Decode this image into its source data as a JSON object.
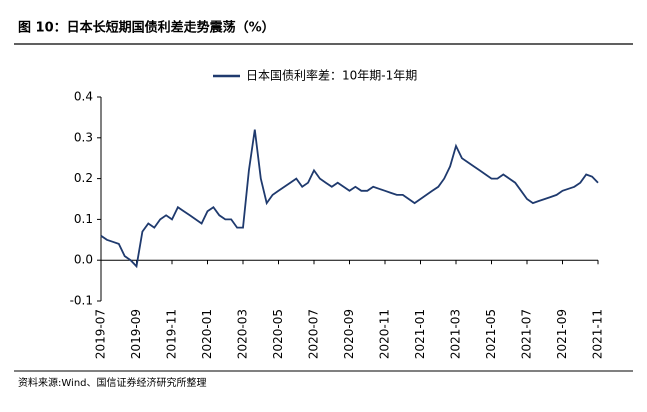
{
  "chart_data": {
    "type": "line",
    "title": "图 10：日本长短期国债利差走势震荡（%）",
    "source": "资料来源:Wind、国信证券经济研究所整理",
    "categories": [
      "2019-07",
      null,
      null,
      null,
      null,
      null,
      "2019-09",
      null,
      null,
      null,
      null,
      null,
      "2019-11",
      null,
      null,
      null,
      null,
      null,
      "2020-01",
      null,
      null,
      null,
      null,
      null,
      "2020-03",
      null,
      null,
      null,
      null,
      null,
      "2020-05",
      null,
      null,
      null,
      null,
      null,
      "2020-07",
      null,
      null,
      null,
      null,
      null,
      "2020-09",
      null,
      null,
      null,
      null,
      null,
      "2020-11",
      null,
      null,
      null,
      null,
      null,
      "2021-01",
      null,
      null,
      null,
      null,
      null,
      "2021-03",
      null,
      null,
      null,
      null,
      null,
      "2021-05",
      null,
      null,
      null,
      null,
      null,
      "2021-07",
      null,
      null,
      null,
      null,
      null,
      "2021-09",
      null,
      null,
      null,
      null,
      null,
      "2021-11"
    ],
    "series": [
      {
        "name": "日本国债利率差：10年期-1年期",
        "color": "#1f3a6e",
        "values": [
          0.06,
          0.05,
          0.045,
          0.04,
          0.01,
          0.0,
          -0.015,
          0.07,
          0.09,
          0.08,
          0.1,
          0.11,
          0.1,
          0.13,
          0.12,
          0.11,
          0.1,
          0.09,
          0.12,
          0.13,
          0.11,
          0.1,
          0.1,
          0.08,
          0.08,
          0.22,
          0.32,
          0.2,
          0.14,
          0.16,
          0.17,
          0.18,
          0.19,
          0.2,
          0.18,
          0.19,
          0.22,
          0.2,
          0.19,
          0.18,
          0.19,
          0.18,
          0.17,
          0.18,
          0.17,
          0.17,
          0.18,
          0.175,
          0.17,
          0.165,
          0.16,
          0.16,
          0.15,
          0.14,
          0.15,
          0.16,
          0.17,
          0.18,
          0.2,
          0.23,
          0.28,
          0.25,
          0.24,
          0.23,
          0.22,
          0.21,
          0.2,
          0.2,
          0.21,
          0.2,
          0.19,
          0.17,
          0.15,
          0.14,
          0.145,
          0.15,
          0.155,
          0.16,
          0.17,
          0.175,
          0.18,
          0.19,
          0.21,
          0.205,
          0.19
        ]
      }
    ],
    "ylim": [
      -0.1,
      0.4
    ],
    "yticks": [
      {
        "value": -0.1,
        "label": "-0.1"
      },
      {
        "value": 0,
        "label": "0.0"
      },
      {
        "value": 0.1,
        "label": "0.1"
      },
      {
        "value": 0.2,
        "label": "0.2"
      },
      {
        "value": 0.3,
        "label": "0.3"
      },
      {
        "value": 0.4,
        "label": "0.4"
      }
    ],
    "legend": "top"
  }
}
